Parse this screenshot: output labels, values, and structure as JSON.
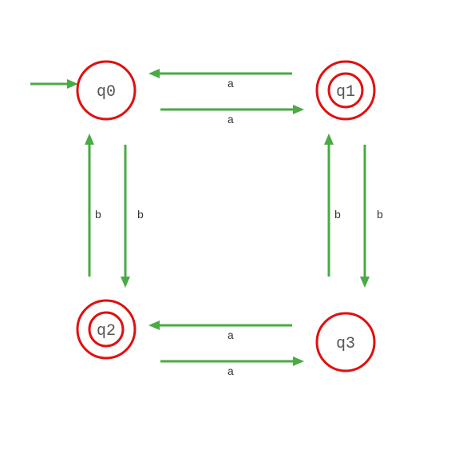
{
  "diagram": {
    "type": "finite-automaton",
    "colors": {
      "state_stroke": "#e01010",
      "edge": "#4aaa44",
      "state_text": "#555555",
      "edge_text": "#333333"
    },
    "start_state": "q0",
    "states": [
      {
        "id": "q0",
        "label": "q0",
        "accepting": false
      },
      {
        "id": "q1",
        "label": "q1",
        "accepting": true
      },
      {
        "id": "q2",
        "label": "q2",
        "accepting": true
      },
      {
        "id": "q3",
        "label": "q3",
        "accepting": false
      }
    ],
    "transitions": [
      {
        "from": "q1",
        "to": "q0",
        "label": "a"
      },
      {
        "from": "q0",
        "to": "q1",
        "label": "a"
      },
      {
        "from": "q2",
        "to": "q0",
        "label": "b"
      },
      {
        "from": "q0",
        "to": "q2",
        "label": "b"
      },
      {
        "from": "q3",
        "to": "q1",
        "label": "b"
      },
      {
        "from": "q1",
        "to": "q3",
        "label": "b"
      },
      {
        "from": "q3",
        "to": "q2",
        "label": "a"
      },
      {
        "from": "q2",
        "to": "q3",
        "label": "a"
      }
    ]
  }
}
